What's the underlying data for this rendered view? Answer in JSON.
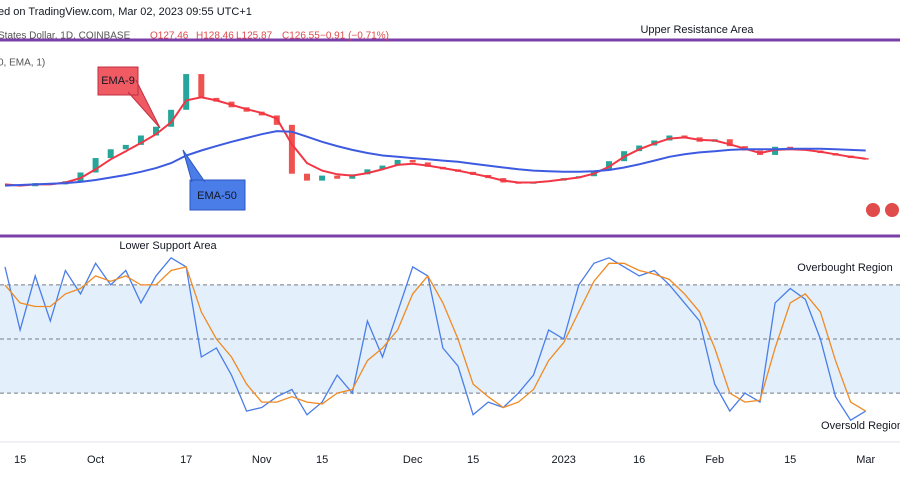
{
  "header": {
    "attribution": "ed on TradingView.com, Mar 02, 2023 09:55 UTC+1",
    "symbol": "States Dollar, 1D, COINBASE",
    "ohlc": [
      "O127.46",
      "H128.46",
      "L125.87",
      "C126.55",
      "−0.91 (−0.71%)"
    ],
    "indicator": "0, EMA, 1)"
  },
  "chart_data": [
    {
      "type": "candlestick",
      "annotations": [
        "Upper Resistance Area"
      ],
      "ylim": [
        115,
        145
      ],
      "up_color": "#26a69a",
      "down_color": "#ef5350",
      "values": [
        122.5,
        122.3,
        122.8,
        122.6,
        123.1,
        124.5,
        126.8,
        128.2,
        128.9,
        130.4,
        131.8,
        134.5,
        140.2,
        136.4,
        135.8,
        134.9,
        134.2,
        133.6,
        132.1,
        124.3,
        123.2,
        124.0,
        123.5,
        124.2,
        125.0,
        125.6,
        126.5,
        126.1,
        125.4,
        125.0,
        124.6,
        124.1,
        123.6,
        122.9,
        122.7,
        123.0,
        123.2,
        123.6,
        123.9,
        124.8,
        126.3,
        127.9,
        128.8,
        129.6,
        130.4,
        130.1,
        129.4,
        129.8,
        128.7,
        128.0,
        127.3,
        128.6,
        128.2,
        128.0,
        127.6,
        127.2,
        126.8,
        126.55
      ],
      "series": [
        {
          "name": "EMA-9",
          "color": "#f23645",
          "values": [
            122.6,
            122.4,
            122.6,
            122.6,
            122.9,
            123.6,
            125.0,
            126.6,
            127.9,
            129.2,
            130.6,
            132.5,
            136.0,
            136.5,
            136.0,
            135.3,
            134.6,
            134.0,
            133.1,
            129.0,
            126.0,
            124.8,
            124.2,
            124.0,
            124.4,
            125.0,
            125.7,
            125.9,
            125.6,
            125.2,
            124.8,
            124.3,
            123.8,
            123.2,
            122.9,
            122.9,
            123.1,
            123.4,
            123.7,
            124.3,
            125.4,
            127.0,
            128.2,
            129.1,
            129.9,
            130.1,
            129.7,
            129.6,
            129.0,
            128.3,
            127.6,
            128.1,
            128.2,
            128.1,
            127.8,
            127.4,
            127.0,
            126.7
          ]
        },
        {
          "name": "EMA-50",
          "color": "#3d5be0",
          "values": [
            122.4,
            122.5,
            122.6,
            122.7,
            122.8,
            123.0,
            123.3,
            123.7,
            124.1,
            124.6,
            125.2,
            126.0,
            127.2,
            128.0,
            128.7,
            129.4,
            130.0,
            130.6,
            131.1,
            131.0,
            130.2,
            129.4,
            128.7,
            128.1,
            127.6,
            127.2,
            127.0,
            126.8,
            126.6,
            126.4,
            126.2,
            125.9,
            125.6,
            125.3,
            125.0,
            124.8,
            124.7,
            124.6,
            124.6,
            124.7,
            124.9,
            125.3,
            125.8,
            126.4,
            127.0,
            127.4,
            127.7,
            127.9,
            128.1,
            128.2,
            128.2,
            128.2,
            128.3,
            128.3,
            128.3,
            128.2,
            128.1,
            128.0
          ]
        }
      ]
    },
    {
      "type": "line",
      "annotations": [
        "Lower Support Area",
        "Overbought Region",
        "Oversold Region"
      ],
      "ylim": [
        -6,
        106
      ],
      "reference_lines": [
        80,
        50,
        20
      ],
      "band_color": "#e3f0fb",
      "categories": [
        null,
        "15",
        null,
        null,
        null,
        null,
        "Oct",
        null,
        null,
        null,
        null,
        null,
        "17",
        null,
        null,
        null,
        null,
        "Nov",
        null,
        null,
        null,
        "15",
        null,
        null,
        null,
        null,
        null,
        "Dec",
        null,
        null,
        null,
        "15",
        null,
        null,
        null,
        null,
        null,
        "2023",
        null,
        null,
        null,
        null,
        "16",
        null,
        null,
        null,
        null,
        "Feb",
        null,
        null,
        null,
        null,
        "15",
        null,
        null,
        null,
        null,
        "Mar"
      ],
      "series": [
        {
          "color": "#4a7de8",
          "values": [
            90,
            55,
            85,
            60,
            88,
            75,
            92,
            80,
            88,
            70,
            85,
            95,
            90,
            40,
            45,
            30,
            10,
            12,
            18,
            22,
            8,
            15,
            30,
            20,
            60,
            40,
            65,
            90,
            85,
            45,
            35,
            8,
            15,
            12,
            20,
            30,
            55,
            50,
            80,
            92,
            95,
            90,
            85,
            88,
            80,
            70,
            60,
            25,
            10,
            20,
            15,
            70,
            78,
            72,
            50,
            18,
            5,
            10
          ]
        },
        {
          "color": "#f08a24",
          "values": [
            80,
            70,
            68,
            68,
            75,
            78,
            85,
            82,
            85,
            80,
            80,
            88,
            90,
            65,
            50,
            40,
            25,
            15,
            15,
            18,
            15,
            14,
            20,
            22,
            38,
            45,
            55,
            75,
            85,
            70,
            50,
            25,
            18,
            12,
            15,
            22,
            38,
            48,
            65,
            82,
            92,
            92,
            88,
            86,
            83,
            75,
            65,
            45,
            20,
            15,
            16,
            45,
            70,
            75,
            65,
            38,
            15,
            10
          ]
        }
      ]
    }
  ]
}
